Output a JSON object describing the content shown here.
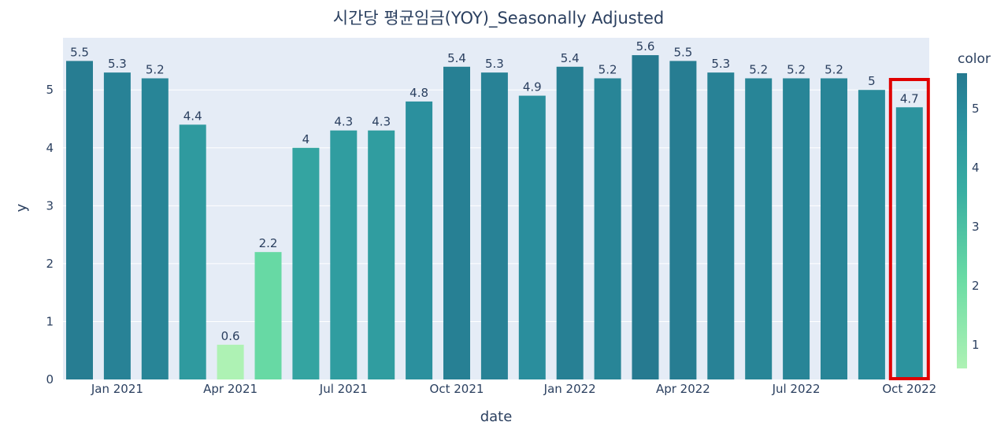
{
  "chart_data": {
    "type": "bar",
    "title": "시간당 평균임금(YOY)_Seasonally Adjusted",
    "xlabel": "date",
    "ylabel": "y",
    "x": [
      "2020-12-01",
      "2021-01-01",
      "2021-02-01",
      "2021-03-01",
      "2021-04-01",
      "2021-05-01",
      "2021-06-01",
      "2021-07-01",
      "2021-08-01",
      "2021-09-01",
      "2021-10-01",
      "2021-11-01",
      "2021-12-01",
      "2022-01-01",
      "2022-02-01",
      "2022-03-01",
      "2022-04-01",
      "2022-05-01",
      "2022-06-01",
      "2022-07-01",
      "2022-08-01",
      "2022-09-01",
      "2022-10-01"
    ],
    "values": [
      5.5,
      5.3,
      5.2,
      4.4,
      0.6,
      2.2,
      4.0,
      4.3,
      4.3,
      4.8,
      5.4,
      5.3,
      4.9,
      5.4,
      5.2,
      5.6,
      5.5,
      5.3,
      5.2,
      5.2,
      5.2,
      5.0,
      4.7
    ],
    "data_labels": [
      "5.5",
      "5.3",
      "5.2",
      "4.4",
      "0.6",
      "2.2",
      "4",
      "4.3",
      "4.3",
      "4.8",
      "5.4",
      "5.3",
      "4.9",
      "5.4",
      "5.2",
      "5.6",
      "5.5",
      "5.3",
      "5.2",
      "5.2",
      "5.2",
      "5",
      "4.7"
    ],
    "x_ticks": [
      {
        "date": "2021-01-01",
        "label": "Jan 2021"
      },
      {
        "date": "2021-04-01",
        "label": "Apr 2021"
      },
      {
        "date": "2021-07-01",
        "label": "Jul 2021"
      },
      {
        "date": "2021-10-01",
        "label": "Oct 2021"
      },
      {
        "date": "2022-01-01",
        "label": "Jan 2022"
      },
      {
        "date": "2022-04-01",
        "label": "Apr 2022"
      },
      {
        "date": "2022-07-01",
        "label": "Jul 2022"
      },
      {
        "date": "2022-10-01",
        "label": "Oct 2022"
      }
    ],
    "y_ticks": [
      0,
      1,
      2,
      3,
      4,
      5
    ],
    "ylim": [
      0,
      5.9
    ],
    "grid": true,
    "colorbar": {
      "title": "color",
      "ticks": [
        1,
        2,
        3,
        4,
        5
      ],
      "range": [
        0.6,
        5.6
      ],
      "scale": "Emrld",
      "colors_low_to_high": [
        "#d3f2a3",
        "#97e196",
        "#6cc08b",
        "#4c9b82",
        "#217a79",
        "#105965",
        "#074050"
      ],
      "placement": "right"
    },
    "highlight": {
      "date": "2022-10-01",
      "color": "#e00000"
    },
    "plot_bgcolor": "#e5ecf6"
  }
}
